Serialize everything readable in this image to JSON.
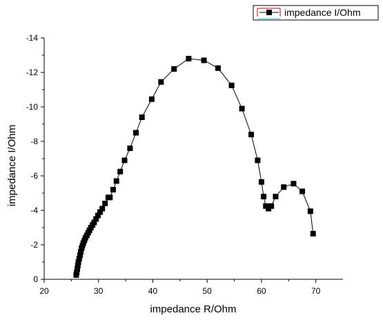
{
  "chart_data": {
    "type": "line",
    "xlabel": "impedance R/Ohm",
    "ylabel": "impedance I/Ohm",
    "xlim": [
      20,
      75
    ],
    "ylim": [
      0,
      -14
    ],
    "xticks": [
      "20",
      "30",
      "40",
      "50",
      "60",
      "70"
    ],
    "yticks": [
      "0",
      "-2",
      "-4",
      "-6",
      "-8",
      "-10",
      "-12",
      "-14"
    ],
    "grid": false,
    "legend_position": "top-right",
    "series": [
      {
        "name": "impedance I/Ohm",
        "marker": "square",
        "color": "#000000",
        "legend_line_color": "#cc0000",
        "x": [
          25.9,
          26.0,
          26.1,
          26.2,
          26.3,
          26.45,
          26.6,
          26.75,
          26.9,
          27.05,
          27.2,
          27.4,
          27.6,
          27.85,
          28.1,
          28.35,
          28.6,
          28.9,
          29.2,
          29.55,
          29.9,
          30.3,
          30.7,
          31.2,
          31.8,
          32.1,
          32.7,
          33.3,
          34.0,
          34.8,
          35.8,
          36.9,
          38.0,
          39.8,
          41.5,
          43.9,
          46.6,
          49.4,
          52.0,
          54.5,
          56.4,
          58.1,
          59.3,
          60.0,
          60.4,
          60.8,
          61.3,
          61.8,
          62.6,
          64.1,
          65.9,
          67.5,
          69.0,
          69.5
        ],
        "y": [
          -0.25,
          -0.4,
          -0.6,
          -0.8,
          -1.0,
          -1.2,
          -1.4,
          -1.6,
          -1.8,
          -1.95,
          -2.1,
          -2.25,
          -2.4,
          -2.55,
          -2.7,
          -2.85,
          -3.0,
          -3.15,
          -3.3,
          -3.5,
          -3.7,
          -3.9,
          -4.1,
          -4.4,
          -4.75,
          -4.75,
          -5.2,
          -5.7,
          -6.25,
          -6.9,
          -7.6,
          -8.5,
          -9.4,
          -10.45,
          -11.45,
          -12.2,
          -12.8,
          -12.7,
          -12.25,
          -11.25,
          -9.9,
          -8.4,
          -6.9,
          -5.65,
          -4.8,
          -4.25,
          -4.1,
          -4.25,
          -4.8,
          -5.35,
          -5.55,
          -5.1,
          -3.95,
          -2.65
        ]
      }
    ]
  }
}
